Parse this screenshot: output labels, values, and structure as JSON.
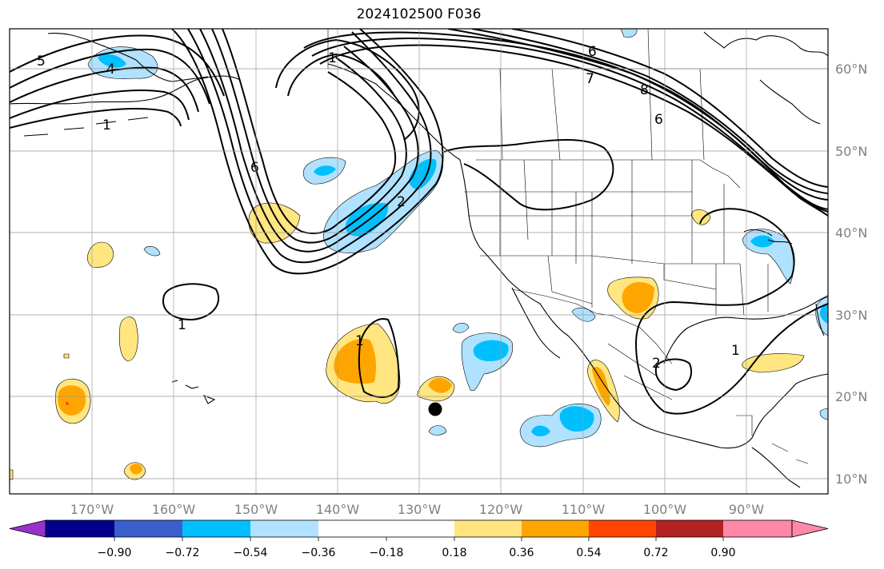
{
  "title": "2024102500 F036",
  "lat_labels": [
    "60°N",
    "50°N",
    "40°N",
    "30°N",
    "20°N",
    "10°N"
  ],
  "lon_labels": [
    "170°W",
    "160°W",
    "150°W",
    "140°W",
    "130°W",
    "120°W",
    "110°W",
    "100°W",
    "90°W"
  ],
  "colorbar": {
    "labels": [
      "−0.90",
      "−0.72",
      "−0.54",
      "−0.36",
      "−0.18",
      "0.18",
      "0.36",
      "0.54",
      "0.72",
      "0.90"
    ],
    "colors": [
      "#9932CC",
      "#00008B",
      "#3A5FCD",
      "#00BFFF",
      "#B0E2FF",
      "#FFFFFF",
      "#FFE680",
      "#FFA500",
      "#FF4500",
      "#B22222",
      "#FF88AA"
    ]
  },
  "contour_labels": [
    "5",
    "4",
    "1",
    "6",
    "2",
    "1",
    "6",
    "7",
    "8",
    "6",
    "1",
    "1",
    "2",
    "1"
  ],
  "fill_colors": {
    "light_blue": "#B0E2FF",
    "blue": "#00BFFF",
    "yellow": "#FFE680",
    "orange": "#FFA500",
    "red": "#FF4500"
  }
}
